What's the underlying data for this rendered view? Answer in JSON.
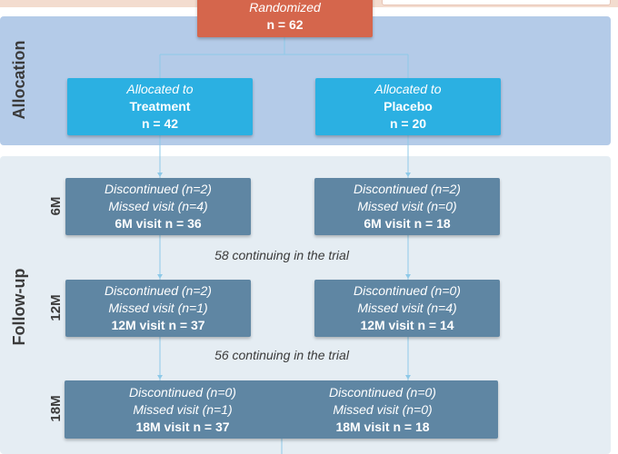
{
  "phases": {
    "allocation": "Allocation",
    "follow_up": "Follow-up"
  },
  "randomized": {
    "label": "Randomized",
    "count": "n = 62"
  },
  "allocation": {
    "treatment": {
      "prefix": "Allocated to",
      "arm": "Treatment",
      "count": "n = 42"
    },
    "placebo": {
      "prefix": "Allocated to",
      "arm": "Placebo",
      "count": "n = 20"
    }
  },
  "timepoints": {
    "m6": {
      "label": "6M",
      "treatment": {
        "discontinued": "Discontinued (n=2)",
        "missed": "Missed visit (n=4)",
        "visit": "6M visit n = 36"
      },
      "placebo": {
        "discontinued": "Discontinued (n=2)",
        "missed": "Missed visit (n=0)",
        "visit": "6M visit n = 18"
      }
    },
    "m12": {
      "label": "12M",
      "treatment": {
        "discontinued": "Discontinued (n=2)",
        "missed": "Missed visit (n=1)",
        "visit": "12M visit n = 37"
      },
      "placebo": {
        "discontinued": "Discontinued (n=0)",
        "missed": "Missed visit (n=4)",
        "visit": "12M visit n = 14"
      }
    },
    "m18": {
      "label": "18M",
      "treatment": {
        "discontinued": "Discontinued (n=0)",
        "missed": "Missed visit (n=1)",
        "visit": "18M visit n = 37"
      },
      "placebo": {
        "discontinued": "Discontinued (n=0)",
        "missed": "Missed visit (n=0)",
        "visit": "18M visit n = 18"
      }
    }
  },
  "continuing": {
    "after_6m": "58 continuing in the trial",
    "after_12m": "56 continuing in the trial"
  },
  "colors": {
    "randomized": "#d5664c",
    "allocation_box": "#2bb0e2",
    "followup_box": "#5f86a3",
    "allocation_panel": "#b4cbe8",
    "followup_panel": "#e5edf3",
    "connector": "#8ec9e8"
  }
}
